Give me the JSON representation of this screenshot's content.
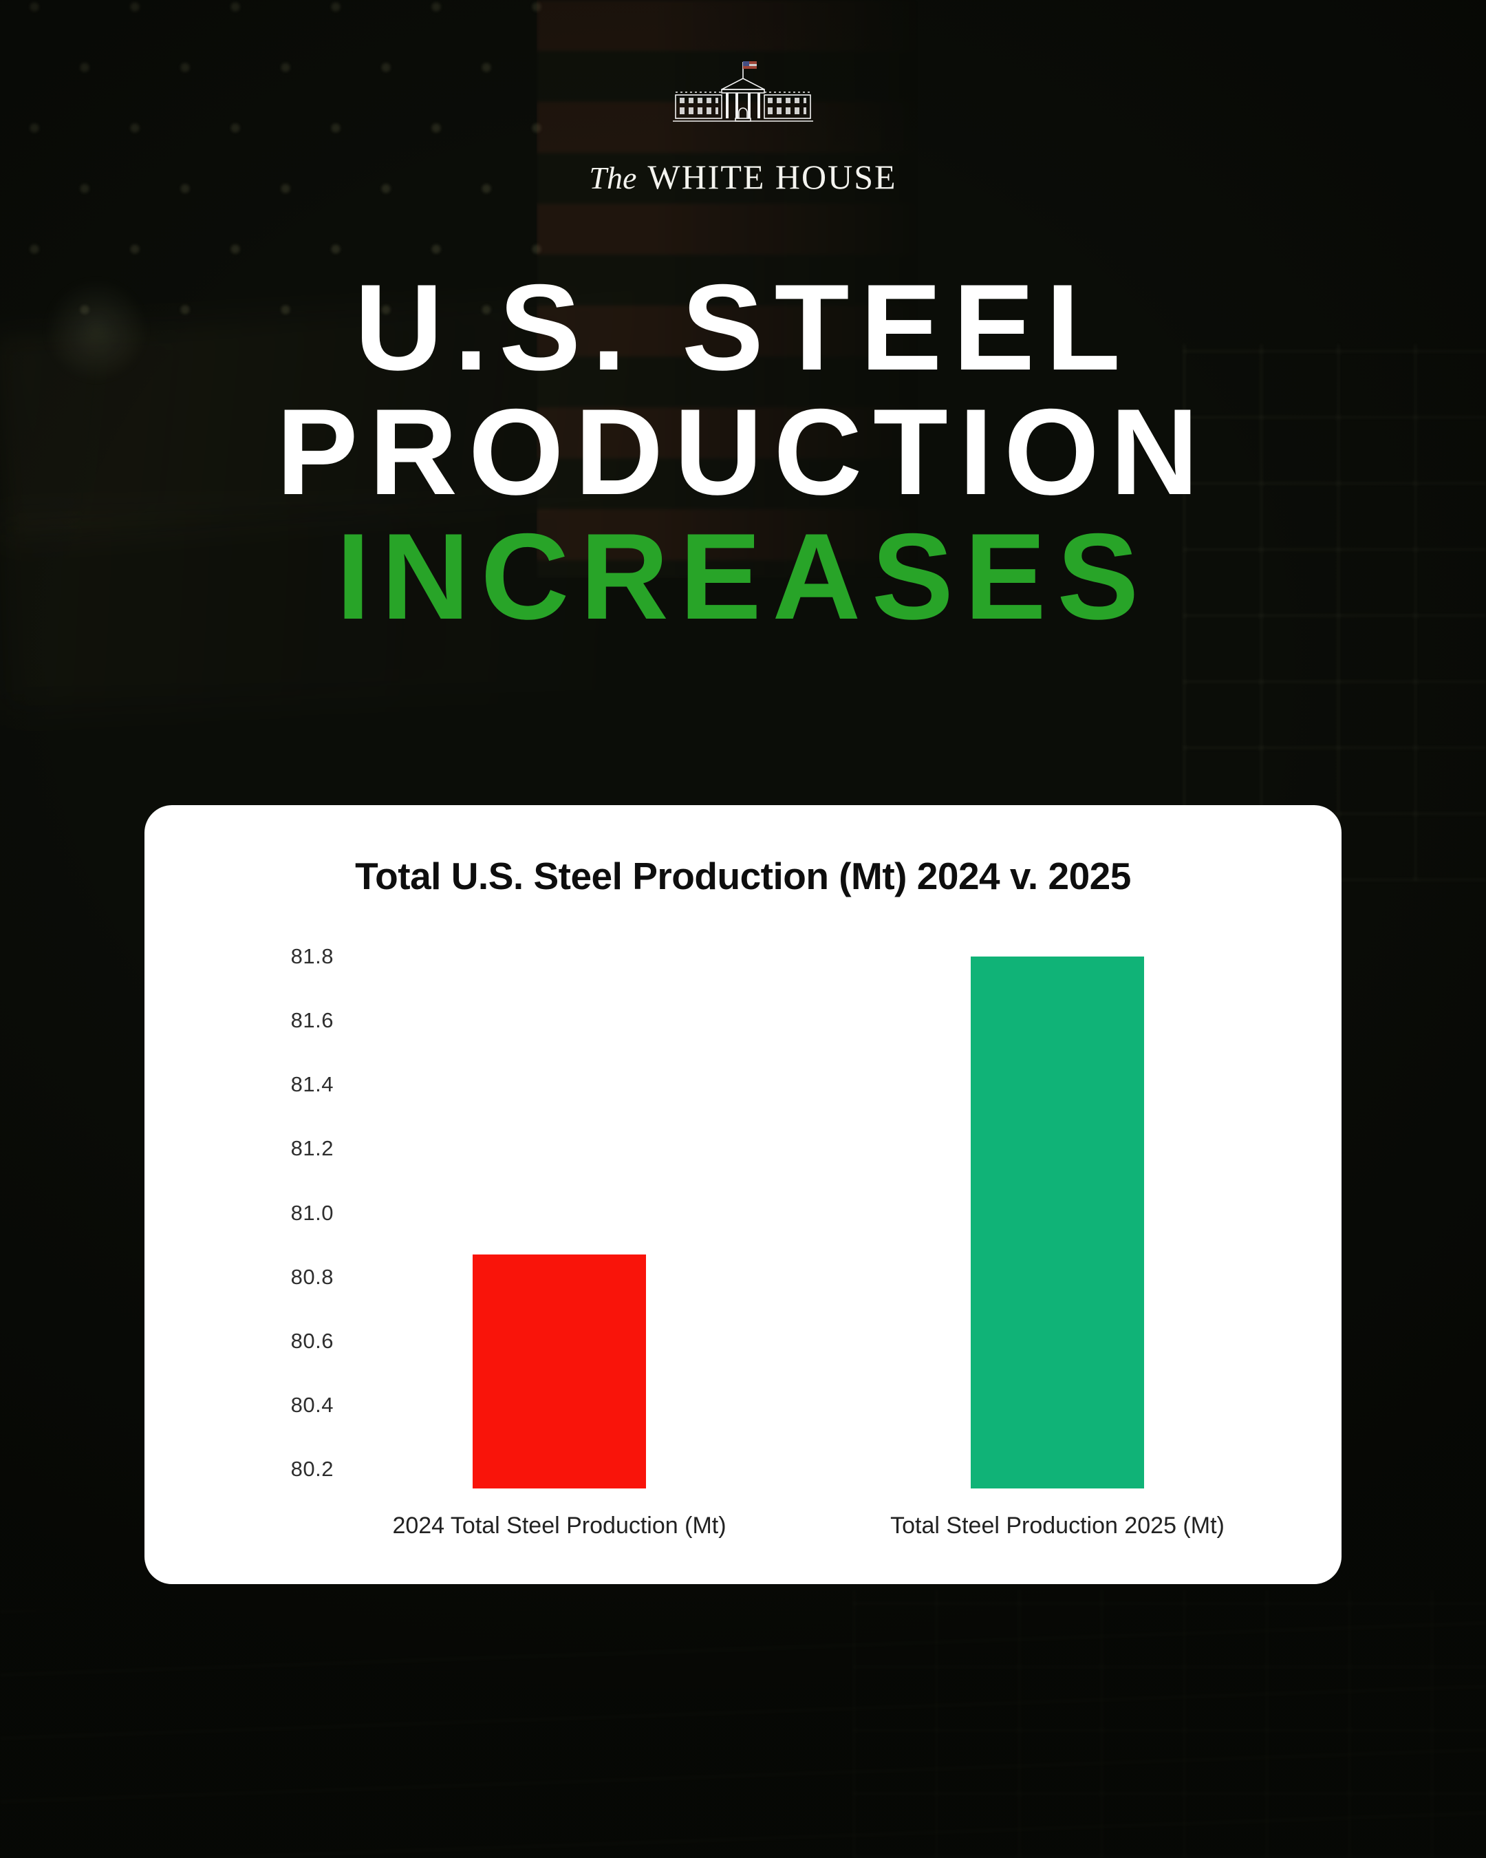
{
  "brand": {
    "the": "The",
    "name": "WHITE HOUSE"
  },
  "headline": {
    "line1": "U.S. STEEL",
    "line2": "PRODUCTION",
    "line3": "INCREASES",
    "text_color": "#FFFFFF",
    "accent_color": "#28A428"
  },
  "chart_data": {
    "type": "bar",
    "title": "Total U.S. Steel Production (Mt) 2024 v. 2025",
    "categories": [
      "2024 Total Steel Production (Mt)",
      "Total Steel Production 2025 (Mt)"
    ],
    "values": [
      80.87,
      81.8
    ],
    "bar_colors": [
      "#F9140A",
      "#10B377"
    ],
    "yticks": [
      "81.8",
      "81.6",
      "81.4",
      "81.2",
      "81.0",
      "80.8",
      "80.6",
      "80.4",
      "80.2"
    ],
    "ylim": [
      80.14,
      81.8
    ],
    "xlabel": "",
    "ylabel": "",
    "grid": false,
    "legend": false,
    "card_background": "#FFFFFF"
  }
}
